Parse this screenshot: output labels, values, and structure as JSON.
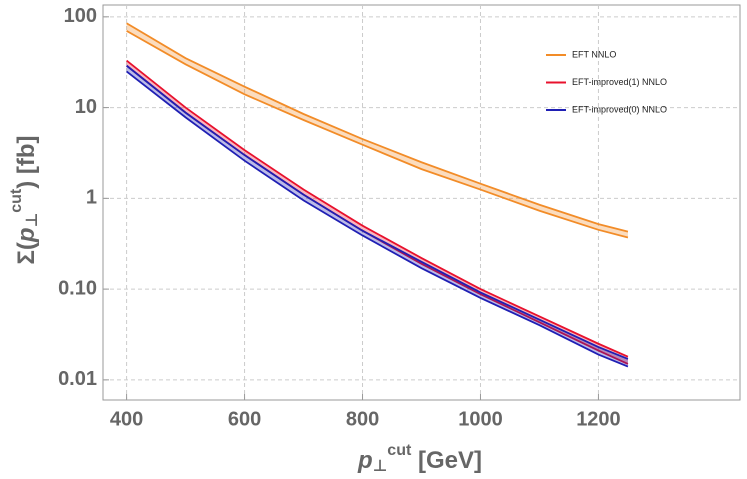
{
  "chart_data": {
    "type": "band",
    "xlabel": {
      "base": "p",
      "sub": "⊥",
      "sup": "cut",
      "rest": " [GeV]"
    },
    "ylabel": {
      "pre": "Σ(",
      "base": "p",
      "sub": "⊥",
      "sup": "cut",
      "rest": ") [fb]"
    },
    "x": [
      400,
      500,
      600,
      700,
      800,
      900,
      1000,
      1100,
      1200,
      1250
    ],
    "series": [
      {
        "name": "EFT NNLO",
        "color": "#f28c28",
        "high": [
          85,
          35,
          17,
          8.5,
          4.5,
          2.5,
          1.45,
          0.85,
          0.52,
          0.43
        ],
        "low": [
          70,
          30,
          14,
          7.3,
          3.9,
          2.1,
          1.25,
          0.73,
          0.45,
          0.37
        ]
      },
      {
        "name": "EFT-improved(1) NNLO",
        "color": "#e8112d",
        "high": [
          33,
          10,
          3.4,
          1.25,
          0.5,
          0.22,
          0.1,
          0.05,
          0.025,
          0.018
        ],
        "low": [
          29,
          8.8,
          3.0,
          1.1,
          0.44,
          0.19,
          0.088,
          0.043,
          0.021,
          0.015
        ]
      },
      {
        "name": "EFT-improved(0) NNLO",
        "color": "#1f1fb4",
        "high": [
          29,
          8.8,
          3.0,
          1.1,
          0.44,
          0.2,
          0.092,
          0.046,
          0.023,
          0.017
        ],
        "low": [
          25,
          7.8,
          2.6,
          0.95,
          0.39,
          0.17,
          0.08,
          0.04,
          0.019,
          0.014
        ]
      }
    ],
    "xlim": [
      360,
      1440
    ],
    "ylim": [
      0.006,
      135
    ],
    "xticks": [
      400,
      600,
      800,
      1000,
      1200
    ],
    "yticks": [
      100,
      10,
      1,
      {
        "value": 0.1,
        "label": "0.10"
      },
      0.01
    ],
    "ylog": true,
    "grid": true,
    "legend": "upper right"
  }
}
